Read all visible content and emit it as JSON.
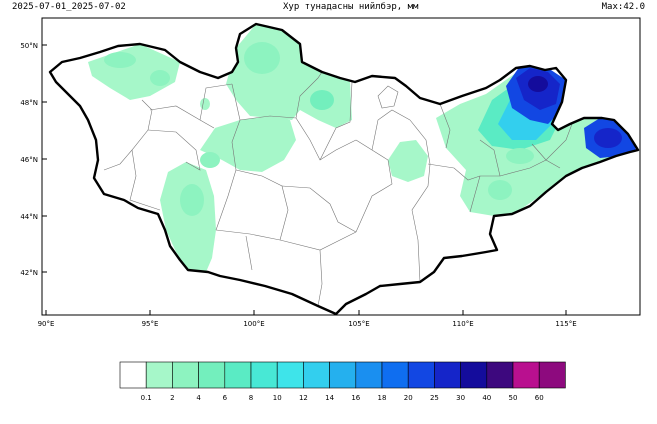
{
  "header": {
    "dates": "2025-07-01_2025-07-02",
    "title": "Хур тунадасны нийлбэр, мм",
    "max": "Max:42.0"
  },
  "axes": {
    "lat_labels": [
      "50°N",
      "48°N",
      "46°N",
      "44°N",
      "42°N"
    ],
    "lon_labels": [
      "90°E",
      "95°E",
      "100°E",
      "105°E",
      "110°E",
      "115°E"
    ]
  },
  "legend": {
    "labels": [
      "0.1",
      "2",
      "4",
      "6",
      "8",
      "10",
      "12",
      "14",
      "16",
      "18",
      "20",
      "25",
      "30",
      "40",
      "50",
      "60"
    ],
    "colors": [
      "#ffffff",
      "#a6f7c9",
      "#8df3c0",
      "#73efbd",
      "#5aebc4",
      "#48e8d5",
      "#3ee4ea",
      "#33cfee",
      "#25b0ee",
      "#1a8ff0",
      "#0f6ef0",
      "#1247e3",
      "#1525c9",
      "#140c9c",
      "#3d087e",
      "#b9108f",
      "#8d0a7e"
    ]
  },
  "colors": {
    "light_green": "#a6f7c9",
    "mid_green": "#8df3c0",
    "blue": "#1525c9",
    "dark_blue": "#140c9c",
    "cyan": "#33cfee"
  }
}
